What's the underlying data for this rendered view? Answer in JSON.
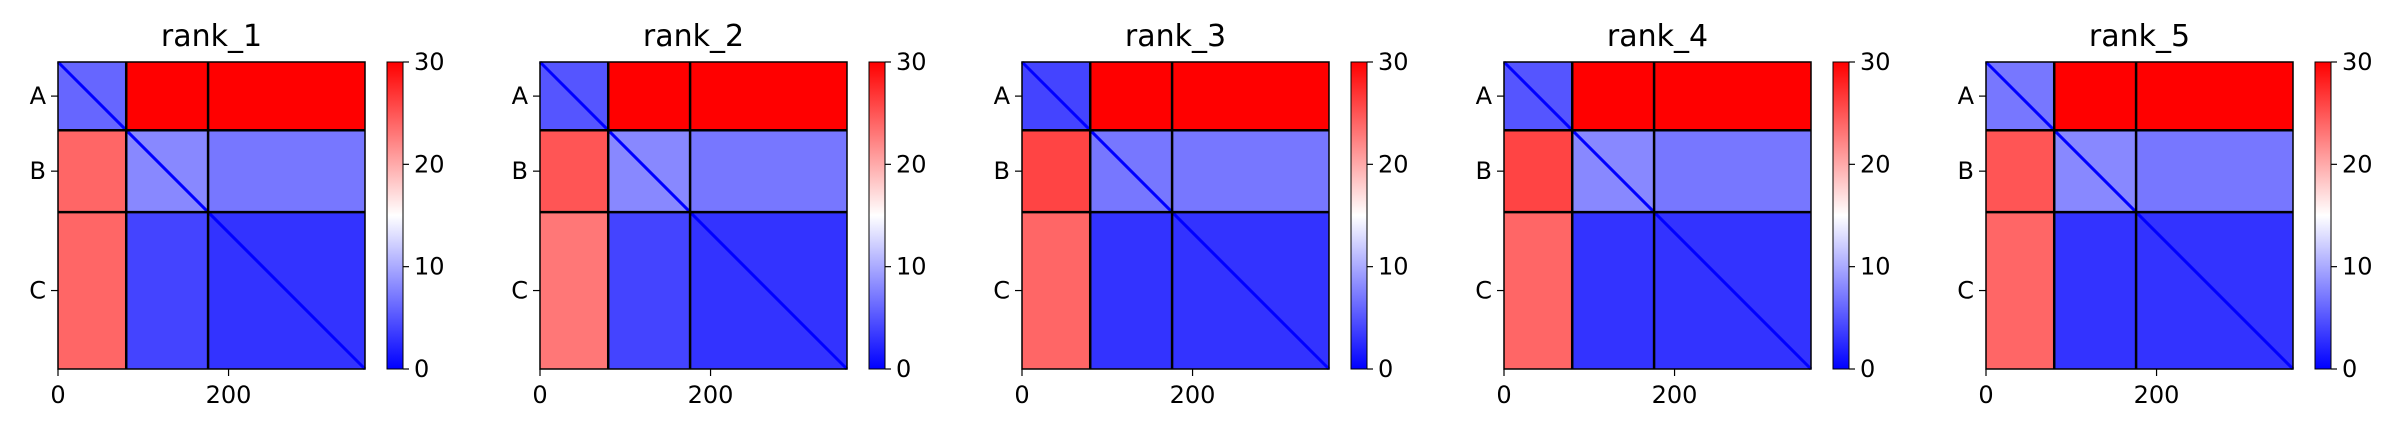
{
  "chart_data": [
    {
      "type": "heatmap",
      "title": "rank_1",
      "chains": [
        "A",
        "B",
        "C"
      ],
      "chain_boundaries": [
        0,
        80,
        176,
        360
      ],
      "x_ticks": [
        0,
        200
      ],
      "xlim": [
        0,
        360
      ],
      "colorbar": {
        "ticks": [
          0,
          10,
          20,
          30
        ],
        "range": [
          0,
          30
        ],
        "colormap": "bwr"
      },
      "block_values": [
        [
          6,
          30,
          30
        ],
        [
          24,
          8,
          7
        ],
        [
          24,
          4,
          3
        ]
      ]
    },
    {
      "type": "heatmap",
      "title": "rank_2",
      "chains": [
        "A",
        "B",
        "C"
      ],
      "chain_boundaries": [
        0,
        80,
        176,
        360
      ],
      "x_ticks": [
        0,
        200
      ],
      "xlim": [
        0,
        360
      ],
      "colorbar": {
        "ticks": [
          0,
          10,
          20,
          30
        ],
        "range": [
          0,
          30
        ],
        "colormap": "bwr"
      },
      "block_values": [
        [
          5,
          30,
          30
        ],
        [
          25,
          8,
          7
        ],
        [
          23,
          4,
          3
        ]
      ]
    },
    {
      "type": "heatmap",
      "title": "rank_3",
      "chains": [
        "A",
        "B",
        "C"
      ],
      "chain_boundaries": [
        0,
        80,
        176,
        360
      ],
      "x_ticks": [
        0,
        200
      ],
      "xlim": [
        0,
        360
      ],
      "colorbar": {
        "ticks": [
          0,
          10,
          20,
          30
        ],
        "range": [
          0,
          30
        ],
        "colormap": "bwr"
      },
      "block_values": [
        [
          4,
          30,
          30
        ],
        [
          26,
          7,
          7
        ],
        [
          24,
          3,
          3
        ]
      ]
    },
    {
      "type": "heatmap",
      "title": "rank_4",
      "chains": [
        "A",
        "B",
        "C"
      ],
      "chain_boundaries": [
        0,
        80,
        176,
        360
      ],
      "x_ticks": [
        0,
        200
      ],
      "xlim": [
        0,
        360
      ],
      "colorbar": {
        "ticks": [
          0,
          10,
          20,
          30
        ],
        "range": [
          0,
          30
        ],
        "colormap": "bwr"
      },
      "block_values": [
        [
          5,
          30,
          30
        ],
        [
          26,
          8,
          7
        ],
        [
          24,
          3,
          3
        ]
      ]
    },
    {
      "type": "heatmap",
      "title": "rank_5",
      "chains": [
        "A",
        "B",
        "C"
      ],
      "chain_boundaries": [
        0,
        80,
        176,
        360
      ],
      "x_ticks": [
        0,
        200
      ],
      "xlim": [
        0,
        360
      ],
      "colorbar": {
        "ticks": [
          0,
          10,
          20,
          30
        ],
        "range": [
          0,
          30
        ],
        "colormap": "bwr"
      },
      "block_values": [
        [
          7,
          30,
          30
        ],
        [
          25,
          8,
          7
        ],
        [
          24,
          3,
          3
        ]
      ]
    }
  ],
  "colors": {
    "low": "#0000ff",
    "mid": "#ffffff",
    "high": "#ff0000",
    "chain_line": "#000000"
  }
}
